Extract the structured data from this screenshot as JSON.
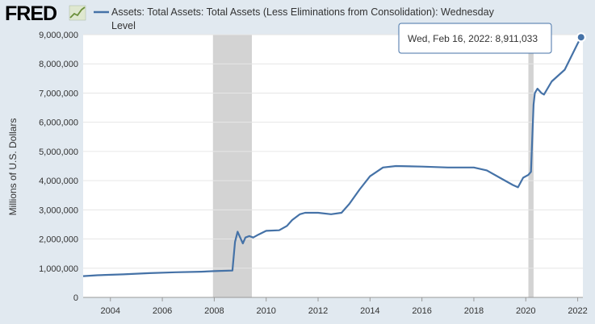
{
  "logo": {
    "text": "FRED"
  },
  "legend": {
    "line1": "Assets: Total Assets: Total Assets (Less Eliminations from Consolidation): Wednesday",
    "line2": "Level"
  },
  "tooltip": {
    "label": "Wed, Feb 16, 2022:",
    "value": "8,911,033"
  },
  "colors": {
    "series": "#4572a7",
    "recession": "#d3d3d3",
    "background": "#e1e9f0",
    "plot": "#ffffff"
  },
  "chart_data": {
    "type": "line",
    "ylabel": "Millions of U.S. Dollars",
    "xlim": [
      2002.95,
      2022.2
    ],
    "ylim": [
      0,
      9000000
    ],
    "x_ticks": [
      2004,
      2006,
      2008,
      2010,
      2012,
      2014,
      2016,
      2018,
      2020,
      2022
    ],
    "y_ticks": [
      0,
      1000000,
      2000000,
      3000000,
      4000000,
      5000000,
      6000000,
      7000000,
      8000000,
      9000000
    ],
    "y_tick_labels": [
      "0",
      "1,000,000",
      "2,000,000",
      "3,000,000",
      "4,000,000",
      "5,000,000",
      "6,000,000",
      "7,000,000",
      "8,000,000",
      "9,000,000"
    ],
    "x_tick_labels": [
      "2004",
      "2006",
      "2008",
      "2010",
      "2012",
      "2014",
      "2016",
      "2018",
      "2020",
      "2022"
    ],
    "recessions": [
      [
        2007.95,
        2009.45
      ],
      [
        2020.1,
        2020.3
      ]
    ],
    "series": [
      {
        "x": [
          2002.95,
          2003.5,
          2004.5,
          2005.5,
          2006.5,
          2007.5,
          2008.0,
          2008.7,
          2008.8,
          2008.9,
          2009.0,
          2009.1,
          2009.2,
          2009.35,
          2009.5,
          2009.7,
          2010.0,
          2010.5,
          2010.8,
          2011.0,
          2011.3,
          2011.5,
          2012.0,
          2012.5,
          2012.9,
          2013.2,
          2013.6,
          2014.0,
          2014.5,
          2015.0,
          2016.0,
          2017.0,
          2018.0,
          2018.5,
          2019.0,
          2019.5,
          2019.7,
          2019.9,
          2020.1,
          2020.2,
          2020.3,
          2020.35,
          2020.45,
          2020.6,
          2020.7,
          2021.0,
          2021.5,
          2022.0,
          2022.13
        ],
        "y": [
          730000,
          760000,
          790000,
          830000,
          860000,
          880000,
          900000,
          920000,
          1900000,
          2250000,
          2050000,
          1850000,
          2050000,
          2100000,
          2050000,
          2150000,
          2280000,
          2300000,
          2450000,
          2650000,
          2850000,
          2900000,
          2900000,
          2850000,
          2900000,
          3200000,
          3700000,
          4150000,
          4450000,
          4500000,
          4480000,
          4450000,
          4450000,
          4350000,
          4100000,
          3850000,
          3770000,
          4100000,
          4200000,
          4300000,
          6600000,
          7000000,
          7150000,
          7000000,
          6950000,
          7400000,
          7800000,
          8700000,
          8911033
        ]
      }
    ]
  }
}
